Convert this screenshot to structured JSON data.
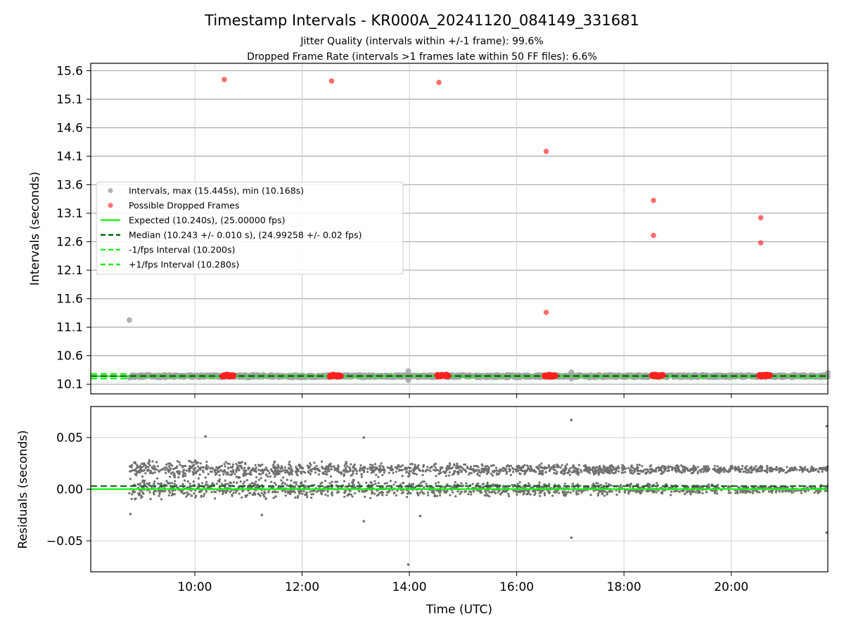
{
  "chart_data": [
    {
      "type": "scatter",
      "title": "Timestamp Intervals - KR000A_20241120_084149_331681",
      "subtitle_lines": [
        "Jitter Quality (intervals within +/-1 frame): 99.6%",
        "Dropped Frame Rate (intervals >1 frames late within 50 FF files): 6.6%"
      ],
      "xlabel": "",
      "ylabel": "Intervals (seconds)",
      "x_unit": "hours (UTC)",
      "xlim": [
        8.06,
        21.8
      ],
      "ylim": [
        9.93,
        15.73
      ],
      "y_ticks": [
        10.1,
        10.6,
        11.1,
        11.6,
        12.1,
        12.6,
        13.1,
        13.6,
        14.1,
        14.6,
        15.1,
        15.6
      ],
      "y_tick_labels": [
        "10.1",
        "10.6",
        "11.1",
        "11.6",
        "12.1",
        "12.6",
        "13.1",
        "13.6",
        "14.1",
        "14.6",
        "15.1",
        "15.6"
      ],
      "x_ticks": [
        10,
        12,
        14,
        16,
        18,
        20
      ],
      "grid": true,
      "legend_position": "center-left",
      "legend": [
        {
          "label": "Intervals, max (15.445s), min (10.168s)",
          "kind": "marker",
          "color": "#a0a0a0"
        },
        {
          "label": "Possible Dropped Frames",
          "kind": "marker",
          "color": "#ff4040"
        },
        {
          "label": "Expected (10.240s), (25.00000 fps)",
          "kind": "line",
          "color": "#22ee22",
          "dash": "solid"
        },
        {
          "label": "Median (10.243 +/- 0.010 s), (24.99258 +/- 0.02 fps)",
          "kind": "line",
          "color": "#006400",
          "dash": "dashed"
        },
        {
          "label": "-1/fps Interval (10.200s)",
          "kind": "line",
          "color": "#22ee22",
          "dash": "dashed"
        },
        {
          "label": "+1/fps Interval (10.280s)",
          "kind": "line",
          "color": "#22ee22",
          "dash": "dashed"
        }
      ],
      "reference_lines": {
        "expected": 10.24,
        "median": 10.243,
        "minus_one_fps": 10.2,
        "plus_one_fps": 10.28
      },
      "series": [
        {
          "name": "Intervals, max (15.445s), min (10.168s)",
          "color": "#a0a0a0",
          "x_range": [
            8.78,
            21.8
          ],
          "baseline": 10.24,
          "points": [
            {
              "x": 8.78,
              "y": 11.225
            },
            {
              "x": 13.98,
              "y": 10.33
            },
            {
              "x": 13.98,
              "y": 10.168
            },
            {
              "x": 17.02,
              "y": 10.31
            },
            {
              "x": 17.02,
              "y": 10.2
            },
            {
              "x": 21.8,
              "y": 10.3
            }
          ]
        },
        {
          "name": "Possible Dropped Frames",
          "color": "#ff4040",
          "clusters": [
            {
              "x_from": 10.52,
              "x_to": 10.72,
              "y": 10.25
            },
            {
              "x_from": 12.52,
              "x_to": 12.72,
              "y": 10.25
            },
            {
              "x_from": 14.52,
              "x_to": 14.72,
              "y": 10.25
            },
            {
              "x_from": 16.52,
              "x_to": 16.72,
              "y": 10.25
            },
            {
              "x_from": 18.52,
              "x_to": 18.72,
              "y": 10.25
            },
            {
              "x_from": 20.52,
              "x_to": 20.72,
              "y": 10.25
            }
          ],
          "points": [
            {
              "x": 10.55,
              "y": 15.445
            },
            {
              "x": 12.55,
              "y": 15.42
            },
            {
              "x": 14.55,
              "y": 15.395
            },
            {
              "x": 16.55,
              "y": 14.185
            },
            {
              "x": 16.55,
              "y": 11.36
            },
            {
              "x": 18.55,
              "y": 13.325
            },
            {
              "x": 18.55,
              "y": 12.71
            },
            {
              "x": 20.55,
              "y": 13.02
            },
            {
              "x": 20.55,
              "y": 12.58
            }
          ]
        }
      ]
    },
    {
      "type": "scatter",
      "title": "",
      "xlabel": "Time (UTC)",
      "ylabel": "Residuals (seconds)",
      "xlim": [
        8.06,
        21.8
      ],
      "ylim": [
        -0.08,
        0.08
      ],
      "y_ticks": [
        -0.05,
        0.0,
        0.05
      ],
      "y_tick_labels": [
        "−0.05",
        "0.00",
        "0.05"
      ],
      "x_ticks": [
        10,
        12,
        14,
        16,
        18,
        20
      ],
      "x_tick_labels": [
        "10:00",
        "12:00",
        "14:00",
        "16:00",
        "18:00",
        "20:00"
      ],
      "grid": true,
      "reference_lines": {
        "zero": 0.0,
        "median_offset": 0.003
      },
      "series": [
        {
          "color": "#707070",
          "x_range": [
            8.78,
            21.8
          ],
          "bands": [
            {
              "center": 0.0,
              "spread_start": 0.012,
              "spread_end": 0.004
            },
            {
              "center": 0.019,
              "spread_start": 0.01,
              "spread_end": 0.003
            }
          ],
          "outliers": [
            {
              "x": 10.2,
              "y": 0.051
            },
            {
              "x": 13.15,
              "y": 0.05
            },
            {
              "x": 13.15,
              "y": -0.031
            },
            {
              "x": 13.98,
              "y": -0.073
            },
            {
              "x": 14.2,
              "y": -0.026
            },
            {
              "x": 17.02,
              "y": 0.067
            },
            {
              "x": 17.02,
              "y": -0.047
            },
            {
              "x": 21.78,
              "y": 0.061
            },
            {
              "x": 21.78,
              "y": -0.042
            },
            {
              "x": 8.8,
              "y": -0.024
            },
            {
              "x": 11.25,
              "y": -0.025
            }
          ]
        }
      ]
    }
  ]
}
